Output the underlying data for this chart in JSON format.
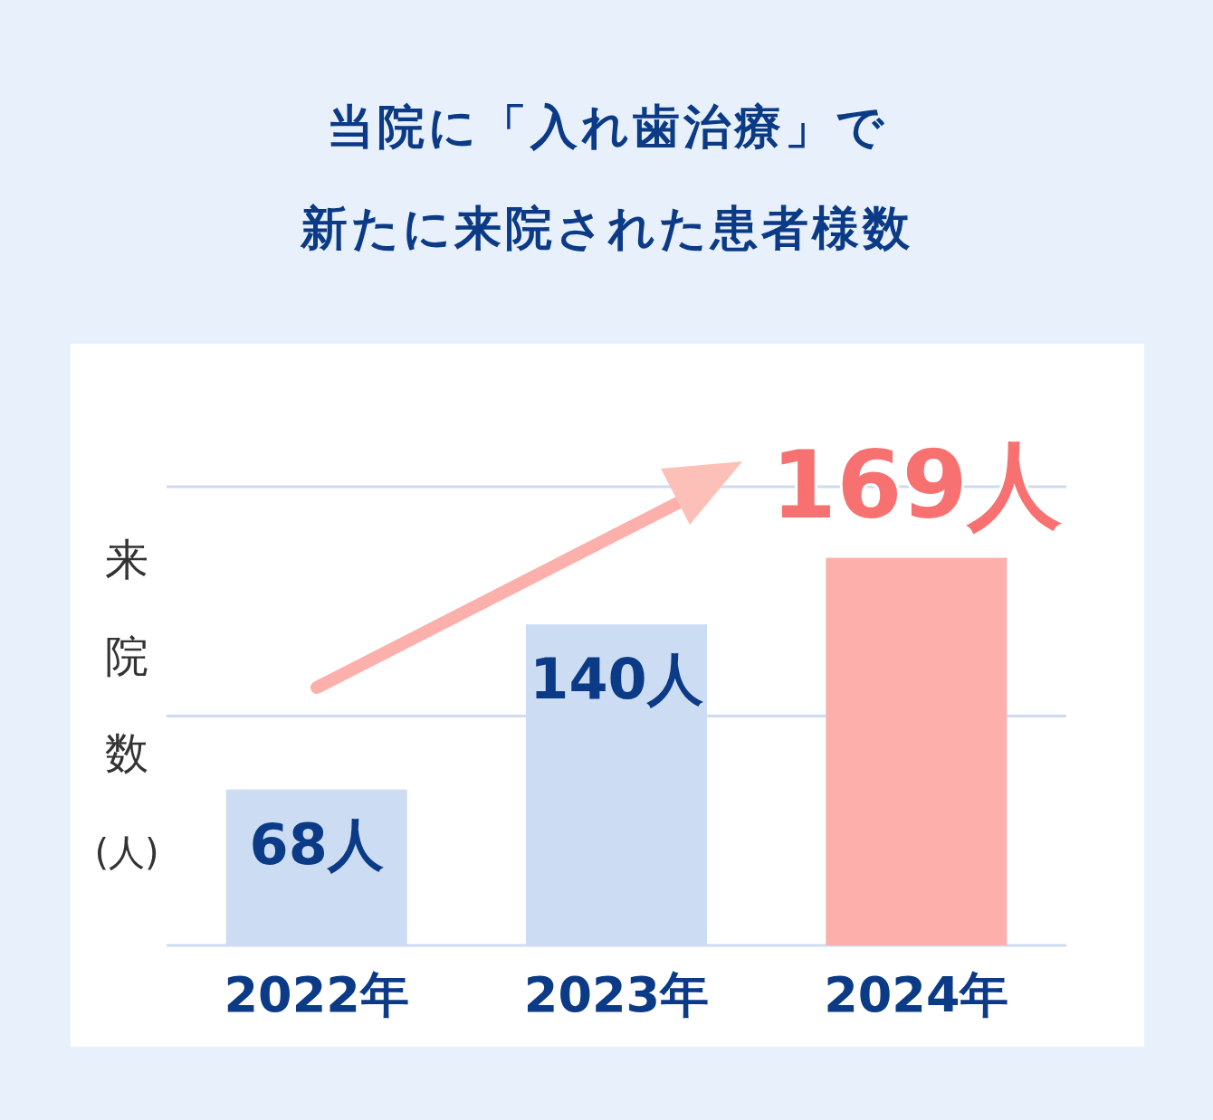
{
  "chart_data": {
    "type": "bar",
    "title": "当院に「入れ歯治療」で",
    "subtitle": "新たに来院された患者様数",
    "ylabel": "来院数(人)",
    "categories": [
      "2022年",
      "2023年",
      "2024年"
    ],
    "values": [
      68,
      140,
      169
    ],
    "colors": [
      "#ccdcf2",
      "#ccdcf2",
      "#fdb0ab"
    ],
    "value_labels": [
      "68人",
      "140人",
      "169人"
    ],
    "ylim": [
      0,
      200
    ],
    "ref_lines": [
      {
        "axis": "y",
        "value": 100,
        "color": "#cddcf0"
      },
      {
        "axis": "y",
        "value": 200,
        "color": "#cddcf0"
      }
    ]
  }
}
